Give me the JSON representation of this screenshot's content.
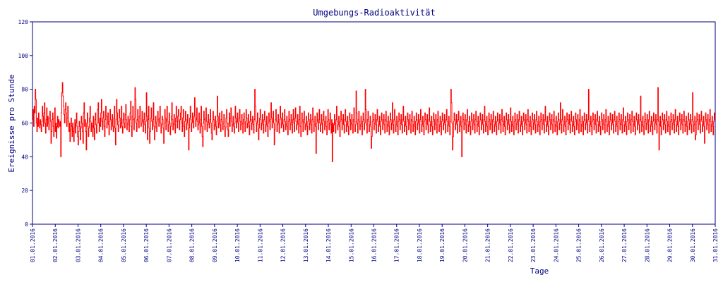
{
  "chart_data": {
    "type": "line",
    "title": "Umgebungs-Radioaktivität",
    "xlabel": "Tage",
    "ylabel": "Ereignisse pro Stunde",
    "ylim": [
      0,
      120
    ],
    "yticks": [
      "0",
      "20",
      "40",
      "60",
      "80",
      "100",
      "120"
    ],
    "xticks": [
      "01.01.2016",
      "02.01.2016",
      "03.01.2016",
      "04.01.2016",
      "05.01.2016",
      "06.01.2016",
      "07.01.2016",
      "08.01.2016",
      "09.01.2016",
      "10.01.2016",
      "11.01.2016",
      "12.01.2016",
      "13.01.2016",
      "14.01.2016",
      "15.01.2016",
      "16.01.2016",
      "17.01.2016",
      "18.01.2016",
      "19.01.2016",
      "20.01.2016",
      "21.01.2016",
      "22.01.2016",
      "23.01.2016",
      "24.01.2016",
      "25.01.2016",
      "26.01.2016",
      "27.01.2016",
      "28.01.2016",
      "29.01.2016",
      "30.01.2016",
      "31.01.2016"
    ],
    "step": "hourly",
    "grid": false,
    "colors": {
      "series": "#ff0000",
      "axes": "#000080",
      "text": "#000080"
    },
    "series": [
      {
        "values": [
          62,
          68,
          58,
          70,
          66,
          80,
          74,
          60,
          55,
          63,
          58,
          66,
          60,
          57,
          62,
          59,
          55,
          61,
          70,
          64,
          58,
          66,
          72,
          60,
          54,
          62,
          69,
          58,
          64,
          60,
          56,
          63,
          67,
          61,
          48,
          55,
          62,
          66,
          58,
          52,
          63,
          69,
          55,
          60,
          51,
          58,
          64,
          57,
          62,
          60,
          58,
          61,
          40,
          66,
          78,
          84,
          76,
          70,
          65,
          60,
          68,
          72,
          66,
          58,
          63,
          70,
          61,
          55,
          60,
          49,
          56,
          63,
          58,
          52,
          60,
          55,
          49,
          57,
          62,
          54,
          60,
          66,
          58,
          52,
          47,
          55,
          61,
          58,
          50,
          57,
          64,
          60,
          55,
          48,
          66,
          72,
          58,
          62,
          55,
          44,
          60,
          66,
          58,
          52,
          57,
          63,
          70,
          61,
          55,
          60,
          58,
          52,
          64,
          57,
          50,
          62,
          66,
          59,
          54,
          60,
          68,
          72,
          60,
          55,
          63,
          58,
          66,
          74,
          61,
          56,
          63,
          67,
          58,
          52,
          62,
          70,
          64,
          57,
          60,
          66,
          59,
          53,
          61,
          68,
          62,
          56,
          60,
          65,
          58,
          55,
          63,
          70,
          57,
          47,
          62,
          74,
          66,
          59,
          55,
          61,
          68,
          63,
          57,
          60,
          70,
          58,
          54,
          62,
          66,
          60,
          57,
          65,
          71,
          62,
          56,
          60,
          64,
          59,
          55,
          62,
          66,
          73,
          58,
          52,
          64,
          70,
          62,
          56,
          63,
          81,
          74,
          60,
          55,
          62,
          68,
          61,
          57,
          64,
          70,
          63,
          58,
          60,
          67,
          61,
          55,
          62,
          66,
          59,
          54,
          61,
          78,
          64,
          50,
          62,
          70,
          57,
          48,
          55,
          63,
          69,
          61,
          56,
          62,
          72,
          58,
          50,
          57,
          64,
          60,
          55,
          61,
          67,
          62,
          58,
          63,
          70,
          60,
          54,
          59,
          64,
          62,
          57,
          48,
          60,
          68,
          63,
          56,
          62,
          70,
          61,
          55,
          59,
          66,
          60,
          53,
          58,
          64,
          72,
          62,
          56,
          60,
          65,
          59,
          54,
          63,
          70,
          61,
          57,
          64,
          68,
          61,
          56,
          62,
          66,
          70,
          60,
          55,
          63,
          68,
          58,
          52,
          61,
          67,
          62,
          56,
          60,
          65,
          59,
          44,
          57,
          63,
          70,
          62,
          55,
          60,
          66,
          61,
          57,
          64,
          75,
          63,
          58,
          62,
          69,
          61,
          56,
          59,
          66,
          60,
          54,
          62,
          70,
          58,
          52,
          46,
          60,
          67,
          62,
          56,
          63,
          69,
          61,
          55,
          59,
          65,
          60,
          57,
          62,
          68,
          60,
          54,
          50,
          61,
          67,
          62,
          56,
          59,
          64,
          58,
          53,
          61,
          76,
          64,
          57,
          60,
          66,
          59,
          55,
          62,
          67,
          61,
          56,
          60,
          65,
          58,
          52,
          57,
          63,
          68,
          60,
          56,
          52,
          60,
          66,
          58,
          63,
          69,
          61,
          55,
          59,
          64,
          58,
          54,
          60,
          70,
          63,
          57,
          61,
          66,
          60,
          55,
          63,
          68,
          61,
          56,
          59,
          65,
          60,
          54,
          62,
          66,
          60,
          55,
          61,
          68,
          63,
          57,
          60,
          65,
          58,
          53,
          61,
          67,
          62,
          56,
          60,
          64,
          59,
          54,
          62,
          80,
          70,
          61,
          55,
          60,
          66,
          59,
          50,
          57,
          63,
          68,
          62,
          56,
          60,
          65,
          59,
          54,
          62,
          67,
          61,
          55,
          59,
          64,
          58,
          52,
          60,
          66,
          61,
          56,
          62,
          72,
          63,
          57,
          61,
          67,
          60,
          47,
          56,
          62,
          68,
          61,
          55,
          59,
          65,
          60,
          54,
          62,
          70,
          63,
          57,
          60,
          66,
          59,
          55,
          62,
          68,
          61,
          56,
          59,
          64,
          58,
          53,
          61,
          67,
          62,
          56,
          60,
          65,
          59,
          54,
          62,
          68,
          60,
          55,
          63,
          69,
          61,
          56,
          59,
          65,
          60,
          54,
          62,
          70,
          58,
          52,
          60,
          66,
          61,
          55,
          62,
          67,
          60,
          56,
          59,
          64,
          58,
          53,
          61,
          66,
          62,
          56,
          60,
          65,
          59,
          54,
          62,
          69,
          61,
          55,
          59,
          64,
          58,
          42,
          60,
          66,
          61,
          56,
          62,
          68,
          60,
          55,
          59,
          65,
          60,
          54,
          62,
          67,
          61,
          56,
          60,
          64,
          58,
          53,
          61,
          68,
          62,
          56,
          60,
          66,
          59,
          54,
          62,
          37,
          60,
          55,
          59,
          65,
          60,
          54,
          62,
          70,
          61,
          56,
          59,
          64,
          58,
          52,
          61,
          67,
          62,
          56,
          60,
          65,
          59,
          54,
          62,
          68,
          61,
          55,
          59,
          64,
          58,
          53,
          61,
          66,
          62,
          56,
          60,
          65,
          59,
          54,
          62,
          69,
          61,
          55,
          59,
          79,
          66,
          60,
          54,
          62,
          67,
          61,
          56,
          59,
          64,
          58,
          53,
          61,
          66,
          62,
          56,
          60,
          80,
          68,
          59,
          54,
          62,
          67,
          61,
          55,
          59,
          64,
          58,
          45,
          52,
          61,
          66,
          62,
          56,
          60,
          65,
          59,
          54,
          62,
          68,
          61,
          55,
          59,
          64,
          58,
          53,
          61,
          66,
          62,
          56,
          60,
          65,
          59,
          54,
          62,
          67,
          61,
          55,
          59,
          64,
          58,
          53,
          61,
          66,
          62,
          56,
          60,
          72,
          59,
          54,
          62,
          68,
          61,
          55,
          59,
          64,
          58,
          53,
          61,
          66,
          62,
          56,
          60,
          65,
          59,
          54,
          62,
          70,
          61,
          55,
          59,
          64,
          58,
          53,
          61,
          66,
          62,
          56,
          60,
          65,
          59,
          54,
          62,
          67,
          61,
          55,
          59,
          64,
          58,
          53,
          61,
          66,
          62,
          56,
          60,
          65,
          59,
          54,
          62,
          68,
          61,
          55,
          59,
          64,
          58,
          53,
          61,
          66,
          62,
          56,
          60,
          65,
          59,
          54,
          62,
          69,
          61,
          55,
          59,
          64,
          58,
          53,
          61,
          66,
          62,
          56,
          60,
          65,
          59,
          54,
          62,
          67,
          61,
          55,
          59,
          64,
          58,
          53,
          61,
          66,
          62,
          56,
          60,
          65,
          59,
          54,
          62,
          68,
          61,
          55,
          59,
          64,
          58,
          53,
          61,
          80,
          72,
          60,
          44,
          52,
          61,
          66,
          62,
          56,
          60,
          65,
          59,
          54,
          62,
          67,
          61,
          55,
          59,
          64,
          58,
          40,
          61,
          66,
          62,
          56,
          60,
          65,
          59,
          54,
          62,
          68,
          61,
          55,
          59,
          64,
          58,
          53,
          61,
          66,
          62,
          56,
          60,
          65,
          59,
          54,
          62,
          67,
          61,
          55,
          59,
          64,
          58,
          53,
          61,
          66,
          62,
          56,
          60,
          65,
          59,
          54,
          62,
          70,
          61,
          55,
          59,
          64,
          58,
          53,
          61,
          66,
          62,
          56,
          60,
          65,
          59,
          54,
          62,
          67,
          61,
          55,
          59,
          64,
          58,
          53,
          61,
          66,
          62,
          56,
          60,
          65,
          59,
          54,
          62,
          68,
          61,
          55,
          59,
          64,
          58,
          53,
          61,
          66,
          62,
          56,
          60,
          65,
          59,
          54,
          62,
          69,
          61,
          55,
          59,
          64,
          58,
          53,
          61,
          66,
          62,
          56,
          60,
          65,
          59,
          54,
          62,
          67,
          61,
          55,
          59,
          64,
          58,
          53,
          61,
          66,
          62,
          56,
          60,
          65,
          59,
          54,
          62,
          68,
          61,
          55,
          59,
          64,
          58,
          53,
          61,
          66,
          62,
          56,
          60,
          65,
          59,
          54,
          62,
          67,
          61,
          55,
          59,
          64,
          58,
          53,
          61,
          66,
          62,
          56,
          60,
          65,
          59,
          54,
          62,
          70,
          61,
          55,
          59,
          64,
          58,
          53,
          61,
          66,
          62,
          56,
          60,
          65,
          59,
          54,
          62,
          67,
          61,
          55,
          59,
          64,
          58,
          53,
          61,
          66,
          62,
          56,
          60,
          72,
          59,
          54,
          62,
          68,
          61,
          55,
          59,
          64,
          58,
          53,
          61,
          66,
          62,
          56,
          60,
          65,
          59,
          54,
          62,
          67,
          61,
          55,
          59,
          64,
          58,
          53,
          61,
          66,
          62,
          56,
          60,
          65,
          59,
          54,
          62,
          68,
          61,
          55,
          59,
          64,
          58,
          53,
          61,
          66,
          62,
          56,
          60,
          65,
          59,
          54,
          62,
          80,
          61,
          55,
          59,
          64,
          58,
          53,
          61,
          66,
          62,
          56,
          60,
          65,
          59,
          54,
          62,
          67,
          61,
          55,
          59,
          64,
          58,
          53,
          61,
          66,
          62,
          56,
          60,
          65,
          59,
          54,
          62,
          68,
          61,
          55,
          59,
          64,
          58,
          53,
          61,
          66,
          62,
          56,
          60,
          65,
          59,
          54,
          62,
          67,
          61,
          55,
          59,
          64,
          58,
          53,
          61,
          66,
          62,
          56,
          60,
          65,
          59,
          54,
          62,
          69,
          61,
          55,
          59,
          64,
          58,
          53,
          61,
          66,
          62,
          56,
          60,
          65,
          59,
          54,
          62,
          67,
          61,
          55,
          59,
          64,
          58,
          53,
          61,
          66,
          62,
          56,
          60,
          65,
          59,
          54,
          62,
          76,
          61,
          55,
          59,
          64,
          58,
          53,
          61,
          66,
          62,
          56,
          60,
          65,
          59,
          54,
          62,
          67,
          61,
          55,
          59,
          64,
          58,
          53,
          61,
          66,
          62,
          56,
          60,
          65,
          59,
          54,
          62,
          81,
          61,
          44,
          59,
          64,
          58,
          53,
          61,
          66,
          62,
          56,
          60,
          65,
          59,
          54,
          62,
          67,
          61,
          55,
          59,
          64,
          58,
          53,
          61,
          66,
          62,
          56,
          60,
          65,
          59,
          54,
          62,
          68,
          61,
          55,
          59,
          64,
          58,
          53,
          61,
          66,
          62,
          56,
          60,
          65,
          59,
          54,
          62,
          67,
          61,
          55,
          59,
          64,
          58,
          53,
          61,
          66,
          62,
          56,
          60,
          65,
          59,
          54,
          62,
          78,
          61,
          55,
          59,
          64,
          50,
          53,
          61,
          66,
          62,
          56,
          60,
          65,
          59,
          54,
          62,
          67,
          61,
          55,
          59,
          64,
          58,
          48,
          61,
          66,
          62,
          56,
          60,
          65,
          59,
          54,
          62,
          68,
          61,
          55,
          59,
          64,
          58,
          53,
          61,
          66,
          62
        ]
      }
    ]
  }
}
